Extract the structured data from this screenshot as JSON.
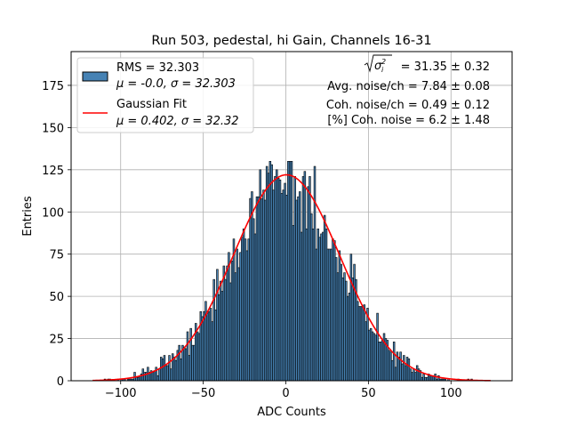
{
  "chart_data": {
    "type": "bar",
    "title": "Run 503, pedestal, hi Gain, Channels 16-31",
    "xlabel": "ADC Counts",
    "ylabel": "Entries",
    "xlim": [
      -130,
      137
    ],
    "ylim": [
      0,
      195
    ],
    "grid": true,
    "xticks": [
      -100,
      -50,
      0,
      50,
      100
    ],
    "xtick_labels": [
      "−100",
      "−50",
      "0",
      "50",
      "100"
    ],
    "yticks": [
      0,
      25,
      50,
      75,
      100,
      125,
      150,
      175
    ],
    "ytick_labels": [
      "0",
      "25",
      "50",
      "75",
      "100",
      "125",
      "150",
      "175"
    ],
    "histogram": {
      "name": "RMS = 32.303",
      "stats": "μ = -0.0, σ = 32.303",
      "color": "#4682b4",
      "edgecolor": "#000000",
      "rms": 32.303,
      "mean": -0.0,
      "sigma": 32.303,
      "x_range": [
        -117,
        124
      ],
      "peak_max": 130
    },
    "fit": {
      "type": "gaussian",
      "name": "Gaussian Fit",
      "stats": "μ = 0.402, σ = 32.32",
      "color": "#ff0000",
      "mu": 0.402,
      "sigma": 32.32,
      "amplitude": 122
    },
    "legend": {
      "position": "upper-left"
    },
    "annotations": {
      "sqrt_sigma": "= 31.35 ± 0.32",
      "avg_noise": "Avg. noise/ch = 7.84 ± 0.08",
      "coh_noise": "Coh. noise/ch = 0.49 ± 0.12",
      "pct_coh_noise": "[%] Coh. noise = 6.2 ± 1.48"
    }
  }
}
